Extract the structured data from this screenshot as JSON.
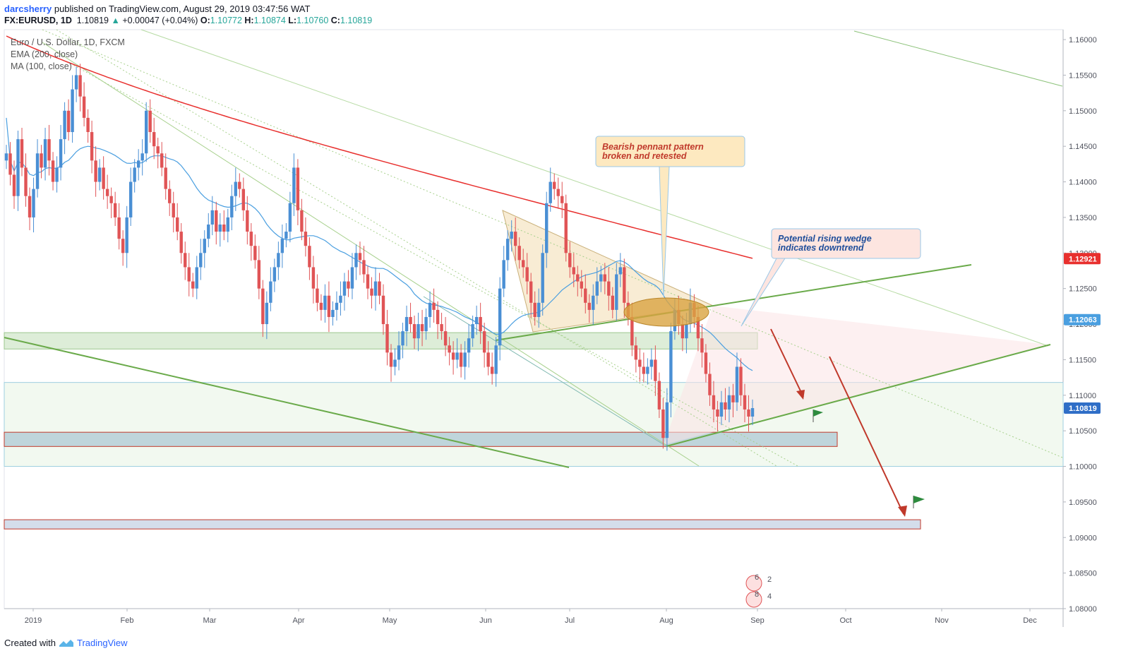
{
  "header": {
    "author": "darcsherry",
    "published": "published on TradingView.com, August 29, 2019 03:47:56 WAT",
    "symbol": "FX:EURUSD, 1D",
    "last": "1.10819",
    "arrow": "▲",
    "change": "+0.00047 (+0.04%)",
    "o_label": "O:",
    "o": "1.10772",
    "h_label": "H:",
    "h": "1.10874",
    "l_label": "L:",
    "l": "1.10760",
    "c_label": "C:",
    "c": "1.10819"
  },
  "legend": {
    "title": "Euro / U.S. Dollar, 1D, FXCM",
    "ema": "EMA (200, close)",
    "ma": "MA (100, close)"
  },
  "annotations": {
    "pennant": [
      "Bearish pennant pattern",
      "broken and retested"
    ],
    "wedge": [
      "Potential rising wedge",
      "indicates downtrend"
    ]
  },
  "events": {
    "e1": [
      "6",
      "2"
    ],
    "e2": [
      "8",
      "4"
    ]
  },
  "footer": {
    "created": "Created with",
    "brand": "TradingView"
  },
  "colors": {
    "up": "#4a8fd4",
    "down": "#e05456",
    "ema": "#e8302e",
    "ma": "#4a9fe0",
    "trend": "#6aaa4a",
    "ema_badge": "#e8302e",
    "ma_badge": "#4a9fe0",
    "price_badge": "#2f6ec7"
  },
  "chart_data": {
    "type": "candlestick",
    "symbol": "FX:EURUSD",
    "timeframe": "1D",
    "y_ticks": [
      "1.16000",
      "1.15500",
      "1.15000",
      "1.14500",
      "1.14000",
      "1.13500",
      "1.13000",
      "1.12500",
      "1.12000",
      "1.11500",
      "1.11000",
      "1.10500",
      "1.10000",
      "1.09500",
      "1.09000",
      "1.08500",
      "1.08000"
    ],
    "ylim": [
      1.08,
      1.161
    ],
    "x_ticks": [
      "2019",
      "Feb",
      "Mar",
      "Apr",
      "May",
      "Jun",
      "Jul",
      "Aug",
      "Sep",
      "Oct",
      "Nov",
      "Dec"
    ],
    "badges": {
      "ema": "1.12921",
      "ma": "1.12063",
      "last": "1.10819"
    },
    "last_close": 1.10819,
    "ema_200_last": 1.12921,
    "ma_100_last": 1.12063,
    "zones": [
      {
        "from": 1.1165,
        "to": 1.1188
      },
      {
        "from": 1.1,
        "to": 1.1118
      },
      {
        "from": 1.1028,
        "to": 1.1048
      },
      {
        "from": 1.0912,
        "to": 1.0925
      }
    ],
    "closes": [
      1.144,
      1.141,
      1.138,
      1.146,
      1.142,
      1.138,
      1.135,
      1.139,
      1.144,
      1.142,
      1.146,
      1.143,
      1.14,
      1.142,
      1.146,
      1.15,
      1.147,
      1.153,
      1.155,
      1.152,
      1.149,
      1.147,
      1.143,
      1.14,
      1.142,
      1.139,
      1.138,
      1.137,
      1.135,
      1.132,
      1.13,
      1.135,
      1.14,
      1.142,
      1.143,
      1.144,
      1.15,
      1.147,
      1.145,
      1.144,
      1.142,
      1.139,
      1.137,
      1.135,
      1.133,
      1.13,
      1.128,
      1.126,
      1.125,
      1.128,
      1.13,
      1.132,
      1.134,
      1.136,
      1.133,
      1.134,
      1.133,
      1.135,
      1.138,
      1.14,
      1.139,
      1.136,
      1.133,
      1.131,
      1.129,
      1.125,
      1.12,
      1.123,
      1.126,
      1.128,
      1.13,
      1.132,
      1.133,
      1.137,
      1.142,
      1.136,
      1.133,
      1.131,
      1.128,
      1.125,
      1.123,
      1.122,
      1.124,
      1.121,
      1.122,
      1.123,
      1.124,
      1.126,
      1.125,
      1.128,
      1.13,
      1.129,
      1.127,
      1.125,
      1.124,
      1.126,
      1.124,
      1.12,
      1.116,
      1.114,
      1.115,
      1.117,
      1.119,
      1.121,
      1.12,
      1.118,
      1.12,
      1.119,
      1.121,
      1.123,
      1.122,
      1.12,
      1.119,
      1.117,
      1.116,
      1.115,
      1.116,
      1.114,
      1.116,
      1.118,
      1.12,
      1.121,
      1.119,
      1.116,
      1.114,
      1.113,
      1.117,
      1.125,
      1.129,
      1.132,
      1.133,
      1.131,
      1.129,
      1.128,
      1.126,
      1.123,
      1.121,
      1.123,
      1.13,
      1.137,
      1.14,
      1.139,
      1.138,
      1.137,
      1.13,
      1.128,
      1.127,
      1.126,
      1.125,
      1.123,
      1.122,
      1.124,
      1.126,
      1.127,
      1.126,
      1.124,
      1.122,
      1.127,
      1.128,
      1.123,
      1.121,
      1.117,
      1.115,
      1.114,
      1.113,
      1.114,
      1.115,
      1.112,
      1.108,
      1.104,
      1.109,
      1.119,
      1.122,
      1.12,
      1.118,
      1.12,
      1.123,
      1.121,
      1.118,
      1.116,
      1.113,
      1.11,
      1.108,
      1.107,
      1.109,
      1.108,
      1.11,
      1.109,
      1.114,
      1.11,
      1.108,
      1.107,
      1.10819
    ]
  }
}
